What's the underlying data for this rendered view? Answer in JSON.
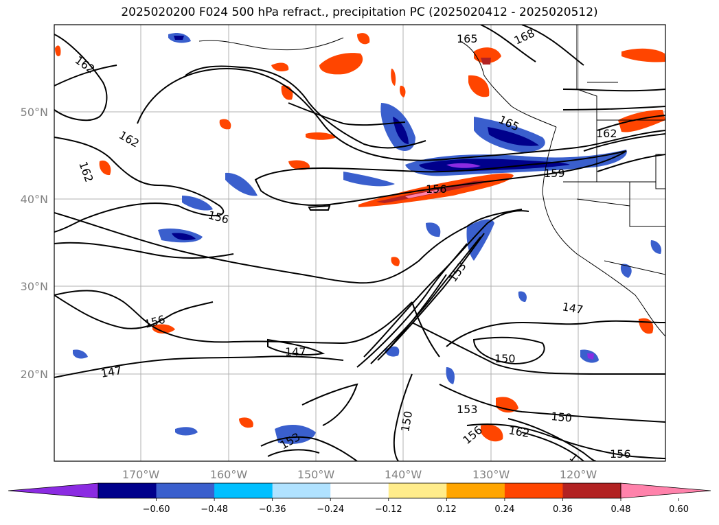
{
  "title": "2025020200 F024 500 hPa refract., precipitation PC (2025020412 - 2025020512)",
  "lat_labels": [
    "50°N",
    "40°N",
    "30°N",
    "20°N"
  ],
  "lon_labels": [
    "170°W",
    "160°W",
    "150°W",
    "140°W",
    "130°W",
    "120°W"
  ],
  "colorbar": {
    "colors": [
      "#8b2be2",
      "#00008b",
      "#3a5fcd",
      "#00bfff",
      "#b0e2ff",
      "#ffffff",
      "#ffec8b",
      "#ffa500",
      "#ff4500",
      "#b22222",
      "#ff82ab"
    ],
    "ticks": [
      "−0.60",
      "−0.48",
      "−0.36",
      "−0.24",
      "−0.12",
      "0.12",
      "0.24",
      "0.36",
      "0.48",
      "0.60"
    ]
  },
  "contour_labels": [
    "162",
    "165",
    "168",
    "165",
    "162",
    "162",
    "162",
    "159",
    "156",
    "156",
    "153",
    "156",
    "147",
    "147",
    "147",
    "150",
    "153",
    "150",
    "156",
    "162",
    "150",
    "156",
    "153",
    "1"
  ]
}
